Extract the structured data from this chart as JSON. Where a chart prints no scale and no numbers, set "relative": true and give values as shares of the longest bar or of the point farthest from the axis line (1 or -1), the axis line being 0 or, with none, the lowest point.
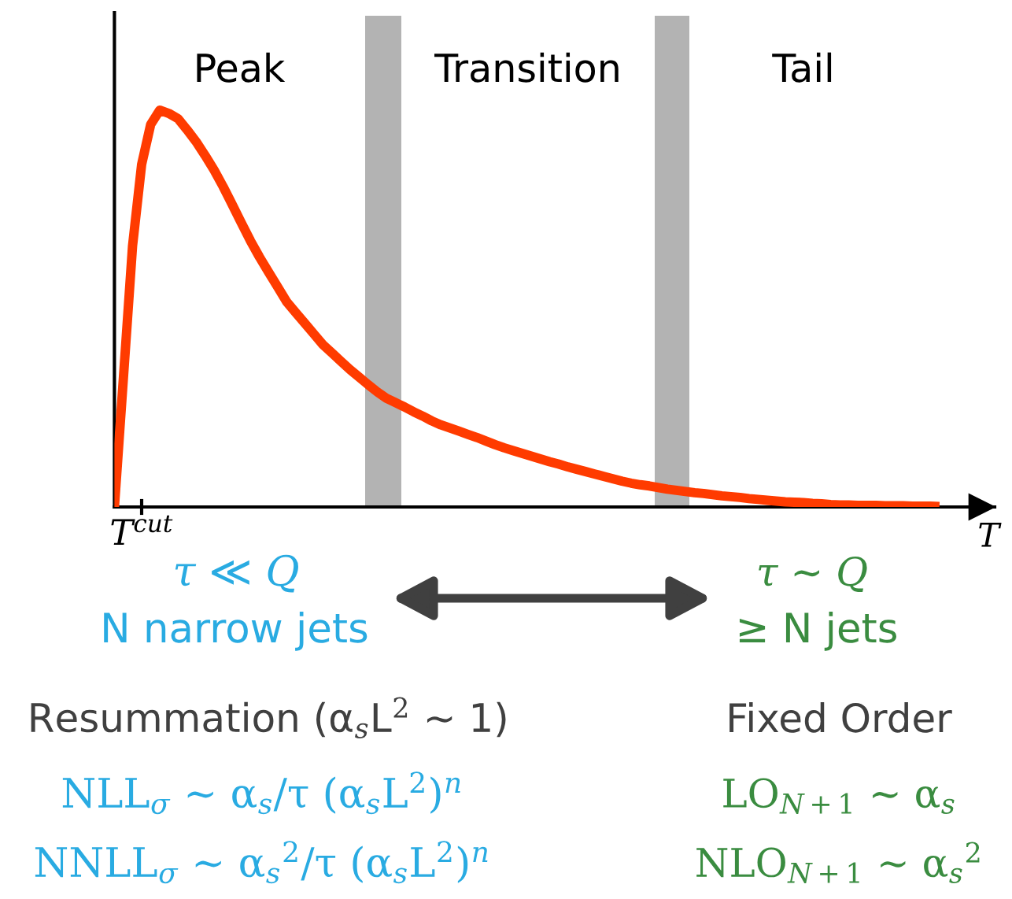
{
  "chart_data": {
    "type": "line",
    "relative": true,
    "categories": [
      null,
      null,
      null,
      null,
      null,
      null,
      null,
      null,
      null,
      null,
      null,
      null,
      null,
      null,
      null,
      null,
      null,
      null,
      null,
      null,
      null,
      null,
      null,
      null,
      null,
      null,
      null,
      null,
      null,
      null,
      null,
      null,
      null,
      null,
      null,
      null,
      null,
      null,
      null,
      null,
      null,
      null,
      null,
      null,
      null,
      null,
      null,
      null,
      null,
      null,
      null,
      null,
      null,
      null,
      null,
      null,
      null,
      null,
      null,
      null,
      null,
      null,
      null,
      null,
      null,
      null,
      null,
      null,
      null,
      null,
      null,
      null,
      null,
      null,
      null,
      null,
      null,
      null,
      null,
      null,
      null,
      null,
      null,
      null,
      null,
      null,
      null,
      null,
      null,
      null,
      null,
      null
    ],
    "series": [
      {
        "color": "#ff3b00",
        "values": [
          0,
          0.328,
          0.658,
          0.863,
          0.964,
          1,
          0.992,
          0.979,
          0.951,
          0.921,
          0.886,
          0.849,
          0.807,
          0.762,
          0.716,
          0.671,
          0.63,
          0.592,
          0.555,
          0.517,
          0.49,
          0.463,
          0.436,
          0.409,
          0.388,
          0.367,
          0.346,
          0.327,
          0.308,
          0.29,
          0.274,
          0.263,
          0.252,
          0.24,
          0.229,
          0.217,
          0.207,
          0.199,
          0.191,
          0.183,
          0.175,
          0.166,
          0.157,
          0.149,
          0.142,
          0.135,
          0.128,
          0.121,
          0.114,
          0.108,
          0.101,
          0.095,
          0.089,
          0.083,
          0.077,
          0.071,
          0.065,
          0.06,
          0.056,
          0.053,
          0.049,
          0.045,
          0.042,
          0.039,
          0.036,
          0.034,
          0.031,
          0.028,
          0.026,
          0.024,
          0.021,
          0.019,
          0.017,
          0.015,
          0.013,
          0.012,
          0.011,
          0.009,
          0.008,
          0.006,
          0.005,
          0.005,
          0.004,
          0.004,
          0.004,
          0.003,
          0.003,
          0.003,
          0.002,
          0.002,
          0.002,
          0.001
        ]
      }
    ],
    "xlabel": "T",
    "annotations": [
      "Peak",
      "Transition",
      "Tail",
      "T$^{cut}$",
      "τ ≪ Q",
      "N narrow jets",
      "τ ∼ Q",
      "≥ N jets",
      "Resummation (α$_{s}$L$^{2}$ ∼ 1)",
      "Fixed Order",
      "NLL$_{σ}$ ∼ α$_{s}$/τ (α$_{s}$L$^{2}$)$^{n}$",
      "NNLL$_{σ}$ ∼ α$_{s}$$^{2}$/τ (α$_{s}$L$^{2}$)$^{n}$",
      "LO$_{N+1}$ ∼ α$_{s}$",
      "NLO$_{N+1}$ ∼ α$_{s}$$^{2}$"
    ]
  }
}
